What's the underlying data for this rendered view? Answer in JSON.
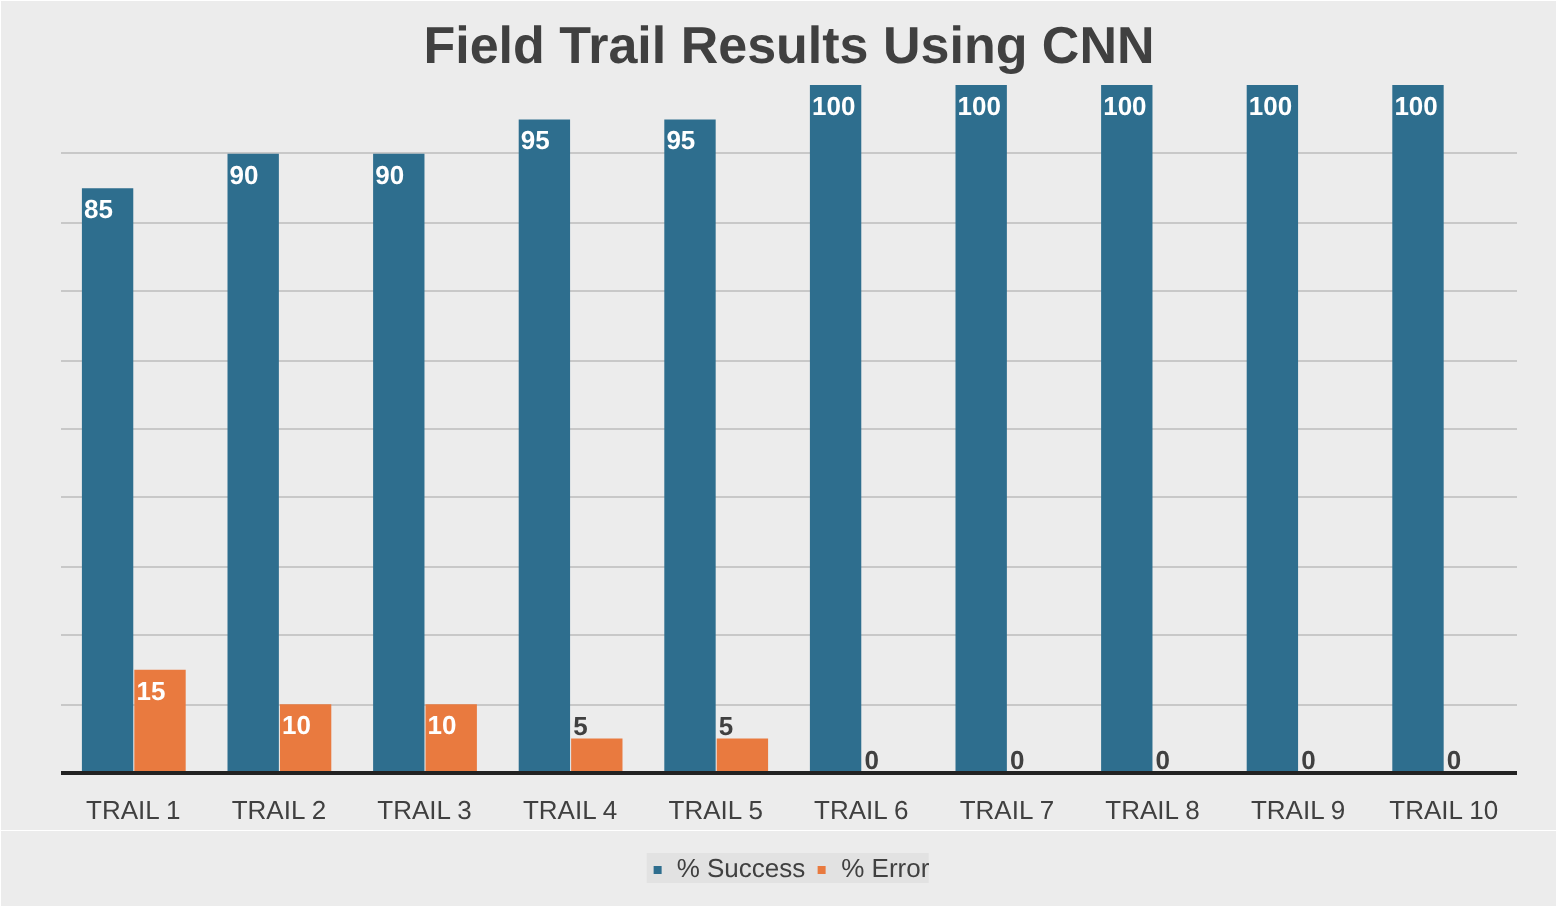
{
  "chart_data": {
    "type": "bar",
    "title": "Field Trail Results Using CNN",
    "categories": [
      "TRAIL 1",
      "TRAIL 2",
      "TRAIL 3",
      "TRAIL 4",
      "TRAIL 5",
      "TRAIL 6",
      "TRAIL 7",
      "TRAIL 8",
      "TRAIL 9",
      "TRAIL 10"
    ],
    "series": [
      {
        "name": "% Success",
        "color": "#2e6e8e",
        "values": [
          85,
          90,
          90,
          95,
          95,
          100,
          100,
          100,
          100,
          100
        ]
      },
      {
        "name": "% Error",
        "color": "#e97a3f",
        "values": [
          15,
          10,
          10,
          5,
          5,
          0,
          0,
          0,
          0,
          0
        ]
      }
    ],
    "ylim": [
      0,
      100
    ],
    "yticks": [
      {
        "value": 0,
        "label": null
      },
      {
        "value": 10,
        "label": null
      },
      {
        "value": 20,
        "label": null
      },
      {
        "value": 30,
        "label": null
      },
      {
        "value": 40,
        "label": null
      },
      {
        "value": 50,
        "label": null
      },
      {
        "value": 60,
        "label": null
      },
      {
        "value": 70,
        "label": null
      },
      {
        "value": 80,
        "label": null
      },
      {
        "value": 90,
        "label": null
      },
      {
        "value": 100,
        "label": null
      }
    ],
    "tick_labels": "x",
    "grid": "y",
    "legend": "bottom",
    "data_labels": true
  }
}
